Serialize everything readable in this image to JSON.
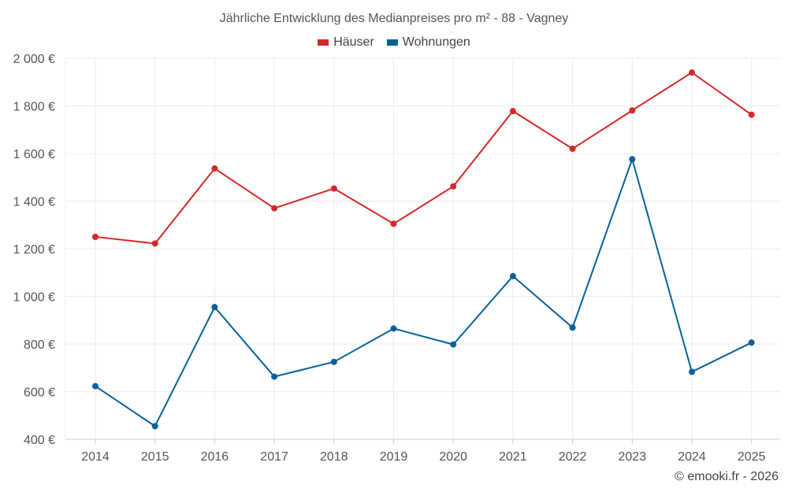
{
  "chart_data": {
    "type": "line",
    "title": "Jährliche Entwicklung des Medianpreises pro m² - 88 - Vagney",
    "categories": [
      "2014",
      "2015",
      "2016",
      "2017",
      "2018",
      "2019",
      "2020",
      "2021",
      "2022",
      "2023",
      "2024",
      "2025"
    ],
    "series": [
      {
        "name": "Häuser",
        "color": "#d62728",
        "values": [
          1250,
          1222,
          1537,
          1370,
          1453,
          1305,
          1462,
          1778,
          1620,
          1781,
          1940,
          1763
        ]
      },
      {
        "name": "Wohnungen",
        "color": "#08609a",
        "values": [
          623,
          455,
          955,
          663,
          725,
          865,
          798,
          1085,
          869,
          1576,
          683,
          806
        ]
      }
    ],
    "y_ticks": [
      "400 €",
      "600 €",
      "800 €",
      "1 000 €",
      "1 200 €",
      "1 400 €",
      "1 600 €",
      "1 800 €",
      "2 000 €"
    ],
    "ylim": [
      400,
      2000
    ],
    "xlabel": "",
    "ylabel": "",
    "grid": true,
    "legend": "top-center"
  },
  "credit": "© emooki.fr - 2026"
}
